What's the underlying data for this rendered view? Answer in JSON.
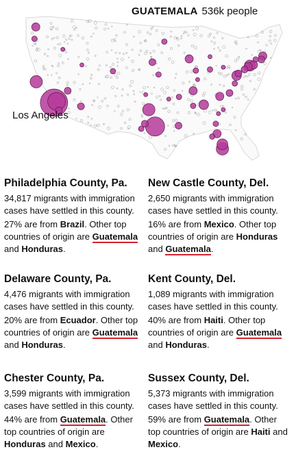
{
  "map": {
    "country": "GUATEMALA",
    "population_label": "536k people",
    "city_label": "Los Angeles",
    "bubble_color": "#b5399a",
    "bubbles": [
      {
        "place": "Los Angeles",
        "lon": -118.2,
        "lat": 34.05,
        "size": 20
      },
      {
        "place": "LA-2",
        "lon": -117.6,
        "lat": 34.3,
        "size": 13
      },
      {
        "place": "San Francisco",
        "lon": -122.2,
        "lat": 37.8,
        "size": 9
      },
      {
        "place": "Seattle",
        "lon": -122.3,
        "lat": 47.6,
        "size": 6
      },
      {
        "place": "Portland",
        "lon": -122.6,
        "lat": 45.5,
        "size": 4
      },
      {
        "place": "Las Vegas",
        "lon": -115.1,
        "lat": 36.2,
        "size": 5
      },
      {
        "place": "Phoenix",
        "lon": -112.1,
        "lat": 33.4,
        "size": 5
      },
      {
        "place": "San Diego",
        "lon": -117.1,
        "lat": 32.7,
        "size": 5
      },
      {
        "place": "Houston",
        "lon": -95.4,
        "lat": 29.8,
        "size": 14
      },
      {
        "place": "Dallas",
        "lon": -96.8,
        "lat": 32.8,
        "size": 9
      },
      {
        "place": "Austin",
        "lon": -97.7,
        "lat": 30.3,
        "size": 5
      },
      {
        "place": "San Antonio",
        "lon": -98.5,
        "lat": 29.4,
        "size": 4
      },
      {
        "place": "Denver",
        "lon": -104.9,
        "lat": 39.7,
        "size": 4
      },
      {
        "place": "Kansas City",
        "lon": -94.6,
        "lat": 39.1,
        "size": 4
      },
      {
        "place": "Omaha",
        "lon": -96.0,
        "lat": 41.3,
        "size": 5
      },
      {
        "place": "Minneapolis",
        "lon": -93.3,
        "lat": 45.0,
        "size": 4
      },
      {
        "place": "Chicago",
        "lon": -87.7,
        "lat": 41.9,
        "size": 6
      },
      {
        "place": "Nashville",
        "lon": -86.8,
        "lat": 36.2,
        "size": 6
      },
      {
        "place": "Atlanta",
        "lon": -84.4,
        "lat": 33.7,
        "size": 7
      },
      {
        "place": "Charlotte",
        "lon": -80.8,
        "lat": 35.2,
        "size": 6
      },
      {
        "place": "Raleigh",
        "lon": -78.6,
        "lat": 35.8,
        "size": 5
      },
      {
        "place": "Miami",
        "lon": -80.2,
        "lat": 25.8,
        "size": 9
      },
      {
        "place": "Fort Lauderdale",
        "lon": -80.2,
        "lat": 26.6,
        "size": 8
      },
      {
        "place": "Orlando",
        "lon": -81.4,
        "lat": 28.5,
        "size": 6
      },
      {
        "place": "Tampa",
        "lon": -82.5,
        "lat": 28.0,
        "size": 4
      },
      {
        "place": "Jacksonville",
        "lon": -81.7,
        "lat": 30.3,
        "size": 4
      },
      {
        "place": "New Orleans",
        "lon": -90.1,
        "lat": 29.95,
        "size": 5
      },
      {
        "place": "Birmingham",
        "lon": -86.8,
        "lat": 33.5,
        "size": 4
      },
      {
        "place": "Memphis",
        "lon": -90.0,
        "lat": 35.1,
        "size": 4
      },
      {
        "place": "Indianapolis",
        "lon": -86.2,
        "lat": 39.8,
        "size": 4
      },
      {
        "place": "Columbus",
        "lon": -83.0,
        "lat": 40.0,
        "size": 4
      },
      {
        "place": "Washington",
        "lon": -77.0,
        "lat": 38.9,
        "size": 7
      },
      {
        "place": "Baltimore",
        "lon": -76.6,
        "lat": 39.3,
        "size": 5
      },
      {
        "place": "Philadelphia",
        "lon": -75.2,
        "lat": 40.0,
        "size": 5
      },
      {
        "place": "New York",
        "lon": -74.0,
        "lat": 40.7,
        "size": 8
      },
      {
        "place": "Long Island",
        "lon": -73.2,
        "lat": 40.8,
        "size": 6
      },
      {
        "place": "Providence",
        "lon": -71.4,
        "lat": 41.8,
        "size": 5
      },
      {
        "place": "Boston",
        "lon": -71.1,
        "lat": 42.4,
        "size": 6
      },
      {
        "place": "Hartford",
        "lon": -72.7,
        "lat": 41.8,
        "size": 4
      },
      {
        "place": "Richmond",
        "lon": -77.4,
        "lat": 37.5,
        "size": 4
      },
      {
        "place": "Idaho",
        "lon": -116.2,
        "lat": 43.6,
        "size": 3
      },
      {
        "place": "Salt Lake City",
        "lon": -111.9,
        "lat": 40.8,
        "size": 3
      },
      {
        "place": "Oklahoma City",
        "lon": -97.5,
        "lat": 35.5,
        "size": 3
      },
      {
        "place": "Little Rock",
        "lon": -92.3,
        "lat": 34.7,
        "size": 3
      },
      {
        "place": "Louisville",
        "lon": -85.8,
        "lat": 38.2,
        "size": 3
      },
      {
        "place": "Detroit",
        "lon": -83.0,
        "lat": 42.3,
        "size": 3
      },
      {
        "place": "Pittsburgh",
        "lon": -80.0,
        "lat": 40.4,
        "size": 3
      },
      {
        "place": "Newark",
        "lon": -74.4,
        "lat": 40.5,
        "size": 6
      },
      {
        "place": "Savannah",
        "lon": -81.1,
        "lat": 32.1,
        "size": 3
      },
      {
        "place": "Charleston",
        "lon": -80.0,
        "lat": 32.8,
        "size": 3
      }
    ]
  },
  "counties": [
    {
      "name": "Philadelphia County, Pa.",
      "count": "34,817",
      "cases_text": "migrants with immigration cases have settled in this county.",
      "pct": "27%",
      "are_from": "are from",
      "origin": "Brazil",
      "origin_underlined": false,
      "other_text": ". Other top countries of origin are",
      "others": [
        {
          "name": "Guatemala",
          "underlined": true
        },
        {
          "name": "Honduras",
          "underlined": false
        }
      ],
      "and_word": "and"
    },
    {
      "name": "New Castle County, Del.",
      "count": "2,650",
      "cases_text": "migrants with immigration cases have settled in this county.",
      "pct": "16%",
      "are_from": "are from",
      "origin": "Mexico",
      "origin_underlined": false,
      "other_text": ". Other top countries of origin are",
      "others": [
        {
          "name": "Honduras",
          "underlined": false
        },
        {
          "name": "Guatemala",
          "underlined": true
        }
      ],
      "and_word": "and"
    },
    {
      "name": "Delaware County, Pa.",
      "count": "4,476",
      "cases_text": "migrants with immigration cases have settled in this county.",
      "pct": "20%",
      "are_from": "are from",
      "origin": "Ecuador",
      "origin_underlined": false,
      "other_text": ". Other top countries of origin are",
      "others": [
        {
          "name": "Guatemala",
          "underlined": true
        },
        {
          "name": "Honduras",
          "underlined": false
        }
      ],
      "and_word": "and"
    },
    {
      "name": "Kent County, Del.",
      "count": "1,089",
      "cases_text": "migrants with immigration cases have settled in this county.",
      "pct": "40%",
      "are_from": "are from",
      "origin": "Haiti",
      "origin_underlined": false,
      "other_text": ". Other top countries of origin are",
      "others": [
        {
          "name": "Guatemala",
          "underlined": true
        },
        {
          "name": "Honduras",
          "underlined": false
        }
      ],
      "and_word": "and"
    },
    {
      "name": "Chester County, Pa.",
      "count": "3,599",
      "cases_text": "migrants with immigration cases have settled in this county.",
      "pct": "44%",
      "are_from": "are from",
      "origin": "Guatemala",
      "origin_underlined": true,
      "other_text": ". Other top countries of origin are",
      "others": [
        {
          "name": "Honduras",
          "underlined": false
        },
        {
          "name": "Mexico",
          "underlined": false
        }
      ],
      "and_word": "and"
    },
    {
      "name": "Sussex County, Del.",
      "count": "5,373",
      "cases_text": "migrants with immigration cases have settled in this county.",
      "pct": "59%",
      "are_from": "are from",
      "origin": "Guatemala",
      "origin_underlined": true,
      "other_text": ". Other top countries of origin are",
      "others": [
        {
          "name": "Haiti",
          "underlined": false
        },
        {
          "name": "Mexico",
          "underlined": false
        }
      ],
      "and_word": "and"
    }
  ]
}
